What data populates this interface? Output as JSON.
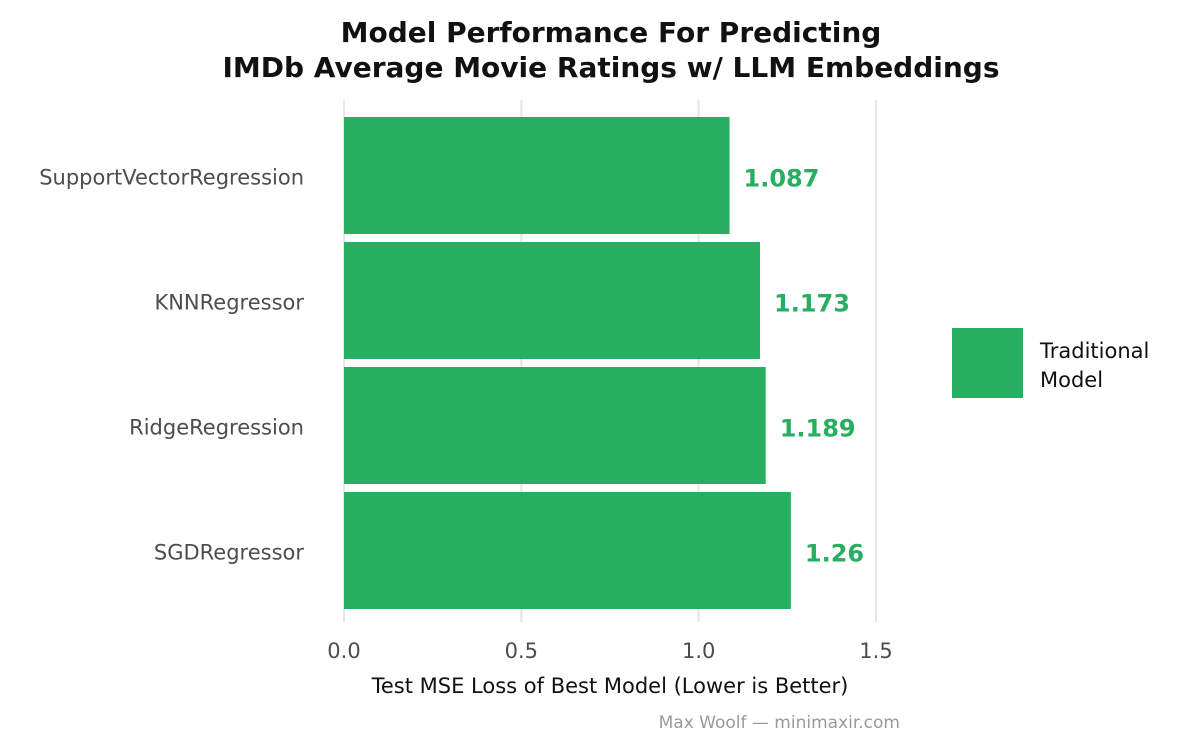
{
  "chart_data": {
    "type": "bar",
    "orientation": "horizontal",
    "title": [
      "Model Performance For Predicting",
      "IMDb Average Movie Ratings w/ LLM Embeddings"
    ],
    "categories": [
      "SupportVectorRegression",
      "KNNRegressor",
      "RidgeRegression",
      "SGDRegressor"
    ],
    "values": [
      1.087,
      1.173,
      1.189,
      1.26
    ],
    "value_labels": [
      "1.087",
      "1.173",
      "1.189",
      "1.26"
    ],
    "xlabel": "Test MSE Loss of Best Model (Lower is Better)",
    "ylabel": "",
    "xlim": [
      0,
      1.5
    ],
    "xticks": [
      0,
      0.5,
      1.0,
      1.5
    ],
    "xtick_labels": [
      "0.0",
      "0.5",
      "1.0",
      "1.5"
    ],
    "grid": true,
    "legend": {
      "position": "right",
      "entries": [
        {
          "label_lines": [
            "Traditional",
            "Model"
          ],
          "color": "#27ae60"
        }
      ]
    },
    "caption": "Max Woolf — minimaxir.com"
  },
  "colors": {
    "bar": "#27ae60",
    "value_label": "#27ae60"
  }
}
